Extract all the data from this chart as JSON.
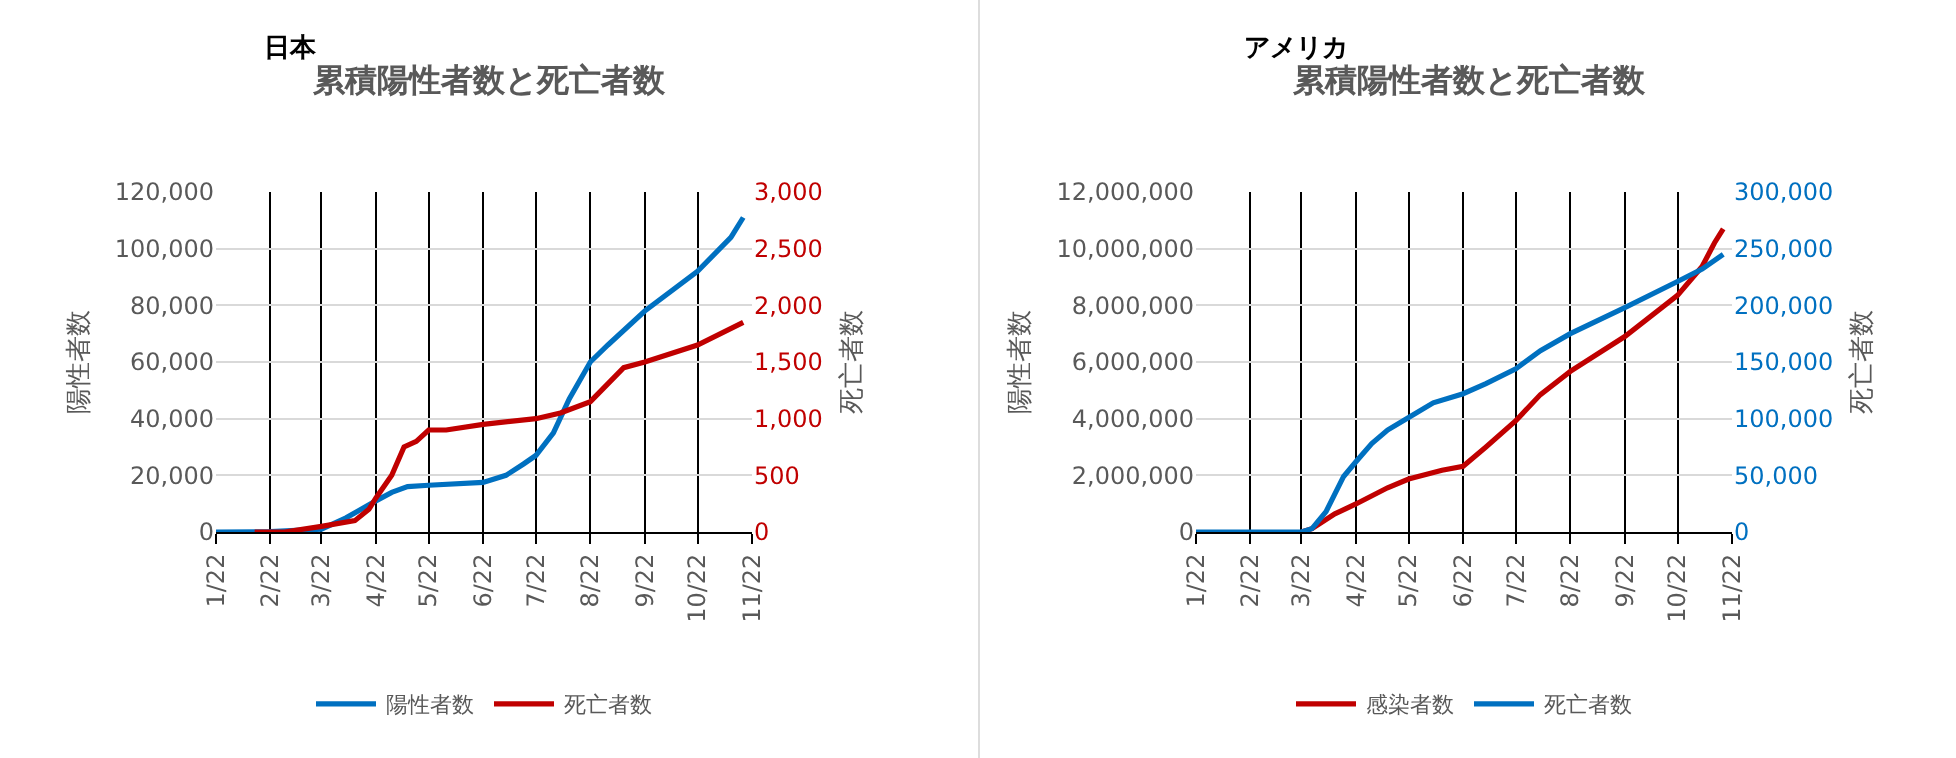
{
  "chart_data": [
    {
      "type": "line",
      "title": "累積陽性者数と死亡者数",
      "annotations": [
        "日本"
      ],
      "ylabel": "陽性者数",
      "y2label": "死亡者数",
      "xlim": [
        "--01-22",
        "--11-22"
      ],
      "xticks": [
        {
          "value": "--01-22",
          "label": "1/22"
        },
        {
          "value": "--02-22",
          "label": "2/22"
        },
        {
          "value": "--03-22",
          "label": "3/22"
        },
        {
          "value": "--04-22",
          "label": "4/22"
        },
        {
          "value": "--05-22",
          "label": "5/22"
        },
        {
          "value": "--06-22",
          "label": "6/22"
        },
        {
          "value": "--07-22",
          "label": "7/22"
        },
        {
          "value": "--08-22",
          "label": "8/22"
        },
        {
          "value": "--09-22",
          "label": "9/22"
        },
        {
          "value": "--10-22",
          "label": "10/22"
        },
        {
          "value": "--11-22",
          "label": "11/22"
        }
      ],
      "ylim": [
        0,
        120000
      ],
      "yticks": [
        {
          "value": 0,
          "label": "0"
        },
        {
          "value": 20000,
          "label": "20,000"
        },
        {
          "value": 40000,
          "label": "40,000"
        },
        {
          "value": 60000,
          "label": "60,000"
        },
        {
          "value": 80000,
          "label": "80,000"
        },
        {
          "value": 100000,
          "label": "100,000"
        },
        {
          "value": 120000,
          "label": "120,000"
        }
      ],
      "y2lim": [
        0,
        3000
      ],
      "y2ticks": [
        {
          "value": 0,
          "label": "0"
        },
        {
          "value": 500,
          "label": "500"
        },
        {
          "value": 1000,
          "label": "1,000"
        },
        {
          "value": 1500,
          "label": "1,500"
        },
        {
          "value": 2000,
          "label": "2,000"
        },
        {
          "value": 2500,
          "label": "2,500"
        },
        {
          "value": 3000,
          "label": "3,000"
        }
      ],
      "grid": true,
      "legend": "bottom",
      "marker": "none",
      "line_style": "solid",
      "series": [
        {
          "name": "陽性者数",
          "color": "#0070c0",
          "x": [
            "--01-22",
            "--02-22",
            "--03-22",
            "--04-05",
            "--04-22",
            "--05-01",
            "--05-10",
            "--05-22",
            "--06-22",
            "--07-05",
            "--07-15",
            "--07-22",
            "--08-01",
            "--08-10",
            "--08-22",
            "--09-01",
            "--09-22",
            "--10-22",
            "--11-10",
            "--11-17"
          ],
          "values": [
            0,
            100,
            1000,
            5000,
            11000,
            14000,
            16000,
            16500,
            17500,
            20000,
            24000,
            27000,
            35000,
            47000,
            60000,
            66000,
            78000,
            92000,
            104000,
            111000
          ]
        },
        {
          "name": "死亡者数",
          "color": "#c00000",
          "axis": "y2",
          "x": [
            "--02-13",
            "--03-01",
            "--03-22",
            "--04-10",
            "--04-18",
            "--04-22",
            "--05-01",
            "--05-08",
            "--05-15",
            "--05-22",
            "--06-01",
            "--06-22",
            "--07-22",
            "--08-05",
            "--08-22",
            "--09-10",
            "--09-22",
            "--10-22",
            "--11-17"
          ],
          "values": [
            0,
            0,
            50,
            100,
            200,
            300,
            500,
            750,
            800,
            900,
            900,
            950,
            1000,
            1050,
            1150,
            1450,
            1500,
            1650,
            1850
          ]
        }
      ]
    },
    {
      "type": "line",
      "title": "累積陽性者数と死亡者数",
      "annotations": [
        "アメリカ"
      ],
      "ylabel": "陽性者数",
      "y2label": "死亡者数",
      "xlim": [
        "--01-22",
        "--11-22"
      ],
      "xticks": [
        {
          "value": "--01-22",
          "label": "1/22"
        },
        {
          "value": "--02-22",
          "label": "2/22"
        },
        {
          "value": "--03-22",
          "label": "3/22"
        },
        {
          "value": "--04-22",
          "label": "4/22"
        },
        {
          "value": "--05-22",
          "label": "5/22"
        },
        {
          "value": "--06-22",
          "label": "6/22"
        },
        {
          "value": "--07-22",
          "label": "7/22"
        },
        {
          "value": "--08-22",
          "label": "8/22"
        },
        {
          "value": "--09-22",
          "label": "9/22"
        },
        {
          "value": "--10-22",
          "label": "10/22"
        },
        {
          "value": "--11-22",
          "label": "11/22"
        }
      ],
      "ylim": [
        0,
        12000000
      ],
      "yticks": [
        {
          "value": 0,
          "label": "0"
        },
        {
          "value": 2000000,
          "label": "2,000,000"
        },
        {
          "value": 4000000,
          "label": "4,000,000"
        },
        {
          "value": 6000000,
          "label": "6,000,000"
        },
        {
          "value": 8000000,
          "label": "8,000,000"
        },
        {
          "value": 10000000,
          "label": "10,000,000"
        },
        {
          "value": 12000000,
          "label": "12,000,000"
        }
      ],
      "y2lim": [
        0,
        300000
      ],
      "y2ticks": [
        {
          "value": 0,
          "label": "0"
        },
        {
          "value": 50000,
          "label": "50,000"
        },
        {
          "value": 100000,
          "label": "100,000"
        },
        {
          "value": 150000,
          "label": "150,000"
        },
        {
          "value": 200000,
          "label": "200,000"
        },
        {
          "value": 250000,
          "label": "250,000"
        },
        {
          "value": 300000,
          "label": "300,000"
        }
      ],
      "grid": true,
      "legend": "bottom",
      "marker": "none",
      "line_style": "solid",
      "series": [
        {
          "name": "感染者数",
          "color": "#c00000",
          "x": [
            "--03-22",
            "--03-28",
            "--04-10",
            "--04-22",
            "--05-10",
            "--05-22",
            "--06-10",
            "--06-22",
            "--07-05",
            "--07-22",
            "--08-05",
            "--08-22",
            "--09-22",
            "--10-22",
            "--11-05",
            "--11-12",
            "--11-17"
          ],
          "values": [
            0,
            120000,
            640000,
            990000,
            1560000,
            1870000,
            2180000,
            2320000,
            3000000,
            3930000,
            4850000,
            5670000,
            6900000,
            8350000,
            9370000,
            10200000,
            10700000
          ]
        },
        {
          "name": "死亡者数",
          "color": "#0070c0",
          "axis": "y2",
          "x": [
            "--01-22",
            "--03-22",
            "--03-28",
            "--04-05",
            "--04-15",
            "--04-22",
            "--05-01",
            "--05-10",
            "--05-22",
            "--06-05",
            "--06-22",
            "--07-05",
            "--07-22",
            "--08-05",
            "--08-22",
            "--09-22",
            "--10-22",
            "--11-05",
            "--11-17"
          ],
          "values": [
            0,
            0,
            3000,
            18000,
            49000,
            62000,
            78000,
            90000,
            101000,
            114000,
            122000,
            131000,
            144000,
            160000,
            175000,
            198000,
            221000,
            232000,
            245000
          ]
        }
      ]
    }
  ]
}
